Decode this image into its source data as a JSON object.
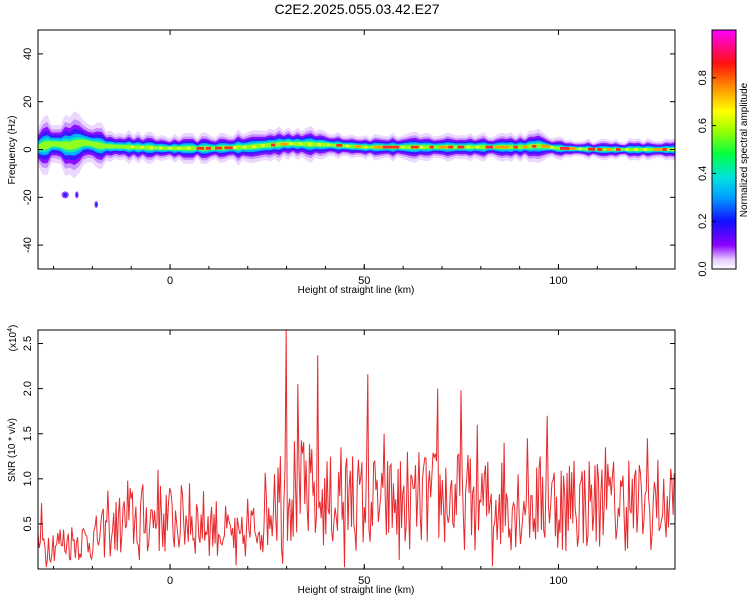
{
  "title": "C2E2.2025.055.03.42.E27",
  "chart_data": [
    {
      "type": "heatmap",
      "panel": "spectrogram",
      "xlabel": "Height of straight line (km)",
      "ylabel": "Frequency (Hz)",
      "xlim": [
        -34,
        130
      ],
      "ylim": [
        -50,
        50
      ],
      "xticks": [
        0,
        50,
        100
      ],
      "yticks": [
        -40,
        -20,
        0,
        20,
        40
      ],
      "colorbar": {
        "label": "Normalized spectral amplitude",
        "range": [
          0.0,
          1.0
        ],
        "ticks": [
          0.0,
          0.2,
          0.4,
          0.6,
          0.8
        ]
      },
      "centerline": [
        [
          -34,
          1.0
        ],
        [
          -30,
          2.5
        ],
        [
          -26,
          1.5
        ],
        [
          -22,
          3.0
        ],
        [
          -18,
          1.5
        ],
        [
          -10,
          1.0
        ],
        [
          0,
          0.5
        ],
        [
          10,
          0.5
        ],
        [
          20,
          1.0
        ],
        [
          30,
          2.5
        ],
        [
          40,
          2.0
        ],
        [
          50,
          1.0
        ],
        [
          60,
          1.0
        ],
        [
          70,
          1.0
        ],
        [
          80,
          1.0
        ],
        [
          90,
          1.0
        ],
        [
          95,
          1.5
        ],
        [
          100,
          0.5
        ],
        [
          110,
          0.0
        ],
        [
          120,
          0.0
        ],
        [
          130,
          0.0
        ]
      ],
      "spread": [
        [
          -34,
          5
        ],
        [
          -25,
          6
        ],
        [
          -18,
          4
        ],
        [
          -10,
          3
        ],
        [
          0,
          2.5
        ],
        [
          30,
          3.5
        ],
        [
          50,
          2.5
        ],
        [
          95,
          3
        ],
        [
          100,
          2
        ],
        [
          130,
          2
        ]
      ],
      "outliers": [
        {
          "x": -27,
          "y": -19,
          "width": 2
        },
        {
          "x": -24,
          "y": -19,
          "width": 1
        },
        {
          "x": -19,
          "y": -23,
          "width": 1
        }
      ]
    },
    {
      "type": "line",
      "panel": "snr",
      "xlabel": "Height of straight line (km)",
      "ylabel": "SNR (10 * v/v)",
      "multiplier": "(x10",
      "multiplier_exp": "4",
      "multiplier_close": ")",
      "xlim": [
        -34,
        130
      ],
      "ylim": [
        0,
        2.65
      ],
      "xticks": [
        0,
        50,
        100
      ],
      "yticks": [
        0.5,
        1.0,
        1.5,
        2.0,
        2.5
      ],
      "color": "#e8282c",
      "envelope": [
        [
          -34,
          0.3
        ],
        [
          -20,
          0.35
        ],
        [
          -10,
          0.6
        ],
        [
          0,
          0.6
        ],
        [
          10,
          0.55
        ],
        [
          18,
          0.35
        ],
        [
          22,
          0.5
        ],
        [
          26,
          0.8
        ],
        [
          30,
          1.0
        ],
        [
          40,
          0.8
        ],
        [
          50,
          0.8
        ],
        [
          60,
          0.8
        ],
        [
          70,
          0.85
        ],
        [
          80,
          0.8
        ],
        [
          90,
          0.8
        ],
        [
          100,
          0.8
        ],
        [
          110,
          0.8
        ],
        [
          120,
          0.75
        ],
        [
          130,
          0.85
        ]
      ],
      "peaks": [
        {
          "x": -33,
          "y": 0.73
        },
        {
          "x": -16,
          "y": 0.87
        },
        {
          "x": -11,
          "y": 0.98
        },
        {
          "x": -3,
          "y": 1.1
        },
        {
          "x": 5,
          "y": 0.95
        },
        {
          "x": 20,
          "y": 0.78
        },
        {
          "x": 27,
          "y": 1.05
        },
        {
          "x": 30,
          "y": 2.65
        },
        {
          "x": 33,
          "y": 2.05
        },
        {
          "x": 35,
          "y": 1.2
        },
        {
          "x": 38,
          "y": 2.37
        },
        {
          "x": 44,
          "y": 1.35
        },
        {
          "x": 47,
          "y": 1.25
        },
        {
          "x": 51,
          "y": 2.16
        },
        {
          "x": 55,
          "y": 1.5
        },
        {
          "x": 61,
          "y": 1.3
        },
        {
          "x": 69,
          "y": 2.0
        },
        {
          "x": 75,
          "y": 1.98
        },
        {
          "x": 79,
          "y": 1.6
        },
        {
          "x": 86,
          "y": 1.4
        },
        {
          "x": 92,
          "y": 1.45
        },
        {
          "x": 97,
          "y": 1.7
        },
        {
          "x": 104,
          "y": 1.2
        },
        {
          "x": 112,
          "y": 1.35
        },
        {
          "x": 118,
          "y": 1.2
        },
        {
          "x": 123,
          "y": 1.45
        },
        {
          "x": 127,
          "y": 1.0
        }
      ],
      "troughs": [
        {
          "x": -32,
          "y": 0.02
        },
        {
          "x": -8,
          "y": 0.1
        },
        {
          "x": 17,
          "y": 0.04
        },
        {
          "x": 29,
          "y": 0.06
        },
        {
          "x": 45,
          "y": 0.02
        },
        {
          "x": 59,
          "y": 0.1
        },
        {
          "x": 83,
          "y": 0.03
        },
        {
          "x": 102,
          "y": 0.2
        },
        {
          "x": 124,
          "y": 0.38
        }
      ]
    }
  ]
}
